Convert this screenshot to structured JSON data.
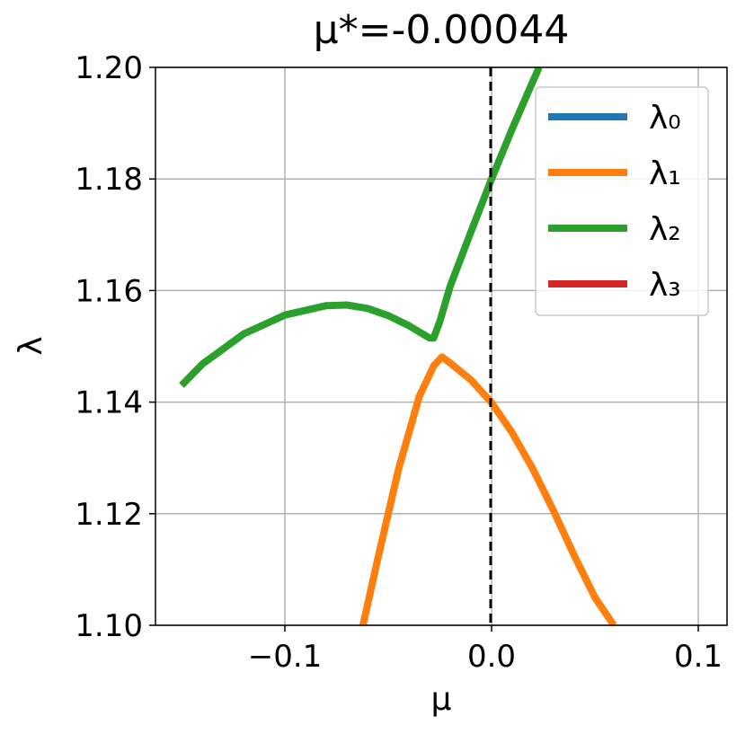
{
  "chart_data": {
    "type": "line",
    "title": "μ*=-0.00044",
    "xlabel": "μ",
    "ylabel": "λ",
    "xlim": [
      -0.1626,
      0.1139
    ],
    "ylim": [
      1.1,
      1.2
    ],
    "xticks": [
      {
        "value": -0.1,
        "label": "−0.1"
      },
      {
        "value": 0,
        "label": "0.0"
      },
      0.1
    ],
    "yticks": [
      {
        "value": 1.1,
        "label": "1.10"
      },
      1.12,
      1.14,
      1.16,
      1.18,
      {
        "value": 1.2,
        "label": "1.20"
      }
    ],
    "grid": true,
    "vline": -0.00044,
    "legend": "upper right",
    "series": [
      {
        "name": "λ₀",
        "color": "#1f77b4",
        "x": [],
        "values": []
      },
      {
        "name": "λ₁",
        "color": "#ff7f0e",
        "x": [
          -0.0622,
          -0.055,
          -0.045,
          -0.035,
          -0.028,
          -0.024,
          -0.02,
          -0.01,
          0,
          0.01,
          0.02,
          0.03,
          0.04,
          0.05,
          0.0591
        ],
        "values": [
          1.1,
          1.112,
          1.128,
          1.141,
          1.1465,
          1.1481,
          1.147,
          1.144,
          1.1399,
          1.1345,
          1.128,
          1.1205,
          1.1125,
          1.105,
          1.1
        ]
      },
      {
        "name": "λ₂",
        "color": "#2ca02c",
        "x": [
          -0.15,
          -0.14,
          -0.12,
          -0.1,
          -0.08,
          -0.07,
          -0.06,
          -0.05,
          -0.04,
          -0.035,
          -0.03,
          -0.028,
          -0.025,
          -0.02,
          -0.01,
          0,
          0.01,
          0.02,
          0.023
        ],
        "values": [
          1.143,
          1.1468,
          1.1522,
          1.1556,
          1.1573,
          1.1574,
          1.1568,
          1.1555,
          1.1537,
          1.1526,
          1.1515,
          1.1515,
          1.1545,
          1.1608,
          1.1705,
          1.18,
          1.189,
          1.1975,
          1.2
        ]
      },
      {
        "name": "λ₃",
        "color": "#d62728",
        "x": [],
        "values": []
      }
    ]
  }
}
